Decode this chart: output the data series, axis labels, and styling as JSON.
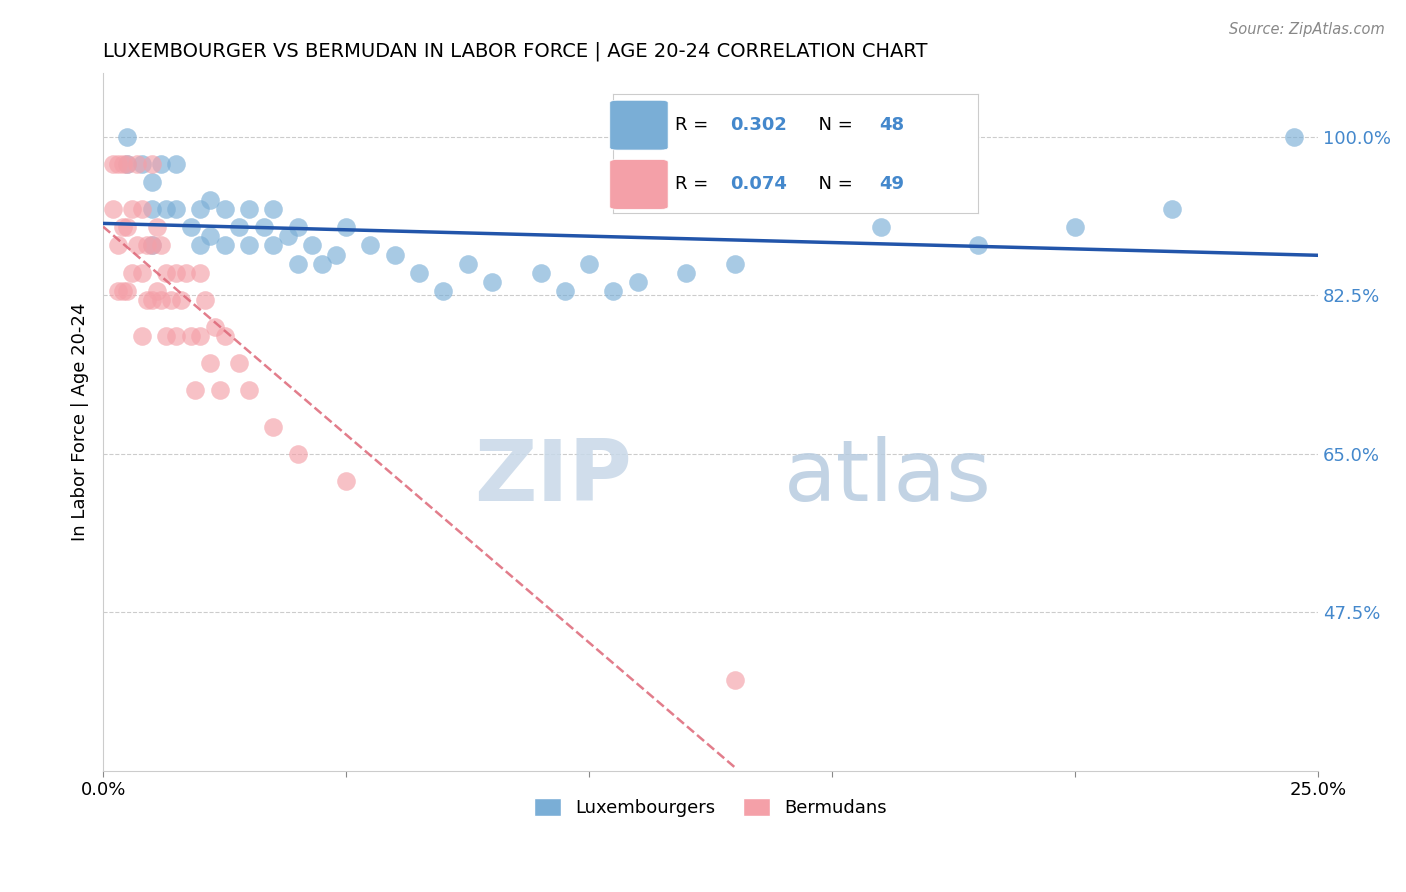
{
  "title": "LUXEMBOURGER VS BERMUDAN IN LABOR FORCE | AGE 20-24 CORRELATION CHART",
  "source_text": "Source: ZipAtlas.com",
  "ylabel": "In Labor Force | Age 20-24",
  "xlim": [
    0.0,
    0.25
  ],
  "ylim": [
    0.3,
    1.07
  ],
  "yticks": [
    0.475,
    0.65,
    0.825,
    1.0
  ],
  "ytick_labels": [
    "47.5%",
    "65.0%",
    "82.5%",
    "100.0%"
  ],
  "xticks": [
    0.0,
    0.05,
    0.1,
    0.15,
    0.2,
    0.25
  ],
  "xtick_labels": [
    "0.0%",
    "",
    "",
    "",
    "",
    "25.0%"
  ],
  "blue_color": "#7aaed6",
  "pink_color": "#f4a0a8",
  "blue_line_color": "#2255aa",
  "pink_line_color": "#dd6677",
  "R_blue": 0.302,
  "N_blue": 48,
  "R_pink": 0.074,
  "N_pink": 49,
  "watermark_zip": "ZIP",
  "watermark_atlas": "atlas",
  "lux_x": [
    0.005,
    0.005,
    0.008,
    0.01,
    0.01,
    0.01,
    0.012,
    0.013,
    0.015,
    0.015,
    0.018,
    0.02,
    0.02,
    0.022,
    0.022,
    0.025,
    0.025,
    0.028,
    0.03,
    0.03,
    0.033,
    0.035,
    0.035,
    0.038,
    0.04,
    0.04,
    0.043,
    0.045,
    0.048,
    0.05,
    0.055,
    0.06,
    0.065,
    0.07,
    0.075,
    0.08,
    0.09,
    0.095,
    0.1,
    0.105,
    0.11,
    0.12,
    0.13,
    0.16,
    0.18,
    0.2,
    0.22,
    0.245
  ],
  "lux_y": [
    0.97,
    1.0,
    0.97,
    0.95,
    0.92,
    0.88,
    0.97,
    0.92,
    0.97,
    0.92,
    0.9,
    0.92,
    0.88,
    0.93,
    0.89,
    0.92,
    0.88,
    0.9,
    0.92,
    0.88,
    0.9,
    0.92,
    0.88,
    0.89,
    0.9,
    0.86,
    0.88,
    0.86,
    0.87,
    0.9,
    0.88,
    0.87,
    0.85,
    0.83,
    0.86,
    0.84,
    0.85,
    0.83,
    0.86,
    0.83,
    0.84,
    0.85,
    0.86,
    0.9,
    0.88,
    0.9,
    0.92,
    1.0
  ],
  "berm_x": [
    0.002,
    0.002,
    0.003,
    0.003,
    0.003,
    0.004,
    0.004,
    0.004,
    0.005,
    0.005,
    0.005,
    0.006,
    0.006,
    0.007,
    0.007,
    0.008,
    0.008,
    0.008,
    0.009,
    0.009,
    0.01,
    0.01,
    0.01,
    0.011,
    0.011,
    0.012,
    0.012,
    0.013,
    0.013,
    0.014,
    0.015,
    0.015,
    0.016,
    0.017,
    0.018,
    0.019,
    0.02,
    0.02,
    0.021,
    0.022,
    0.023,
    0.024,
    0.025,
    0.028,
    0.03,
    0.035,
    0.04,
    0.05,
    0.13
  ],
  "berm_y": [
    0.97,
    0.92,
    0.97,
    0.88,
    0.83,
    0.97,
    0.9,
    0.83,
    0.97,
    0.9,
    0.83,
    0.92,
    0.85,
    0.97,
    0.88,
    0.92,
    0.85,
    0.78,
    0.88,
    0.82,
    0.97,
    0.88,
    0.82,
    0.9,
    0.83,
    0.88,
    0.82,
    0.85,
    0.78,
    0.82,
    0.85,
    0.78,
    0.82,
    0.85,
    0.78,
    0.72,
    0.85,
    0.78,
    0.82,
    0.75,
    0.79,
    0.72,
    0.78,
    0.75,
    0.72,
    0.68,
    0.65,
    0.62,
    0.4
  ]
}
